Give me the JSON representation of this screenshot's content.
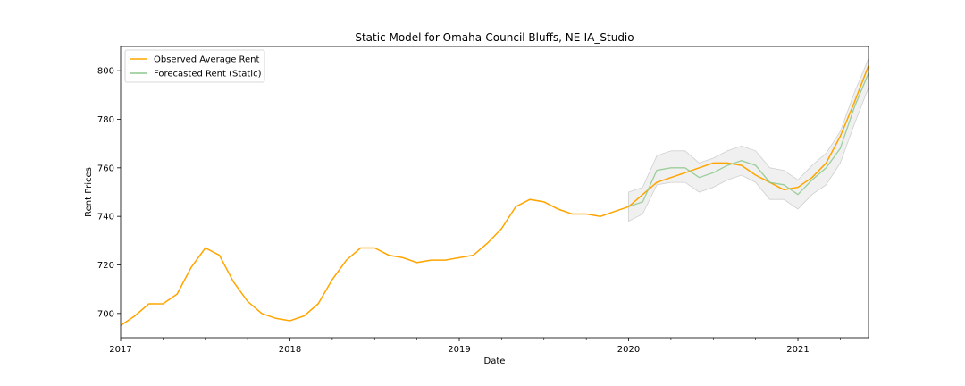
{
  "chart_data": {
    "type": "line",
    "title": "Static Model for Omaha-Council Bluffs, NE-IA_Studio",
    "xlabel": "Date",
    "ylabel": "Rent Prices",
    "xlim": [
      2017.0,
      2021.4167
    ],
    "ylim": [
      690,
      810
    ],
    "x_ticks": [
      2017,
      2018,
      2019,
      2020,
      2021
    ],
    "y_ticks": [
      700,
      720,
      740,
      760,
      780,
      800
    ],
    "grid": false,
    "legend_position": "top-left",
    "series": [
      {
        "name": "Observed Average Rent",
        "color": "#FFA500",
        "x": [
          2017.0,
          2017.0833,
          2017.1667,
          2017.25,
          2017.3333,
          2017.4167,
          2017.5,
          2017.5833,
          2017.6667,
          2017.75,
          2017.8333,
          2017.9167,
          2018.0,
          2018.0833,
          2018.1667,
          2018.25,
          2018.3333,
          2018.4167,
          2018.5,
          2018.5833,
          2018.6667,
          2018.75,
          2018.8333,
          2018.9167,
          2019.0,
          2019.0833,
          2019.1667,
          2019.25,
          2019.3333,
          2019.4167,
          2019.5,
          2019.5833,
          2019.6667,
          2019.75,
          2019.8333,
          2019.9167,
          2020.0,
          2020.0833,
          2020.1667,
          2020.25,
          2020.3333,
          2020.4167,
          2020.5,
          2020.5833,
          2020.6667,
          2020.75,
          2020.8333,
          2020.9167,
          2021.0,
          2021.0833,
          2021.1667,
          2021.25,
          2021.3333,
          2021.4167
        ],
        "values": [
          695,
          699,
          704,
          704,
          708,
          719,
          727,
          724,
          713,
          705,
          700,
          698,
          697,
          699,
          704,
          714,
          722,
          727,
          727,
          724,
          723,
          721,
          722,
          722,
          723,
          724,
          729,
          735,
          744,
          747,
          746,
          743,
          741,
          741,
          740,
          742,
          744,
          749,
          754,
          756,
          758,
          760,
          762,
          762,
          761,
          757,
          754,
          751,
          752,
          756,
          762,
          773,
          787,
          802
        ]
      },
      {
        "name": "Forecasted Rent (Static)",
        "color": "#8CC88C",
        "x": [
          2020.0,
          2020.0833,
          2020.1667,
          2020.25,
          2020.3333,
          2020.4167,
          2020.5,
          2020.5833,
          2020.6667,
          2020.75,
          2020.8333,
          2020.9167,
          2021.0,
          2021.0833,
          2021.1667,
          2021.25,
          2021.3333,
          2021.4167
        ],
        "values": [
          744,
          746,
          759,
          760,
          760,
          756,
          758,
          761,
          763,
          761,
          754,
          753,
          749,
          755,
          760,
          768,
          785,
          799
        ],
        "lower": [
          738,
          741,
          753,
          754,
          754,
          750,
          752,
          755,
          757,
          754,
          747,
          747,
          743,
          749,
          753,
          762,
          778,
          793
        ],
        "upper": [
          750,
          752,
          765,
          767,
          767,
          762,
          764,
          767,
          769,
          767,
          760,
          759,
          755,
          761,
          766,
          775,
          791,
          805
        ]
      }
    ]
  }
}
